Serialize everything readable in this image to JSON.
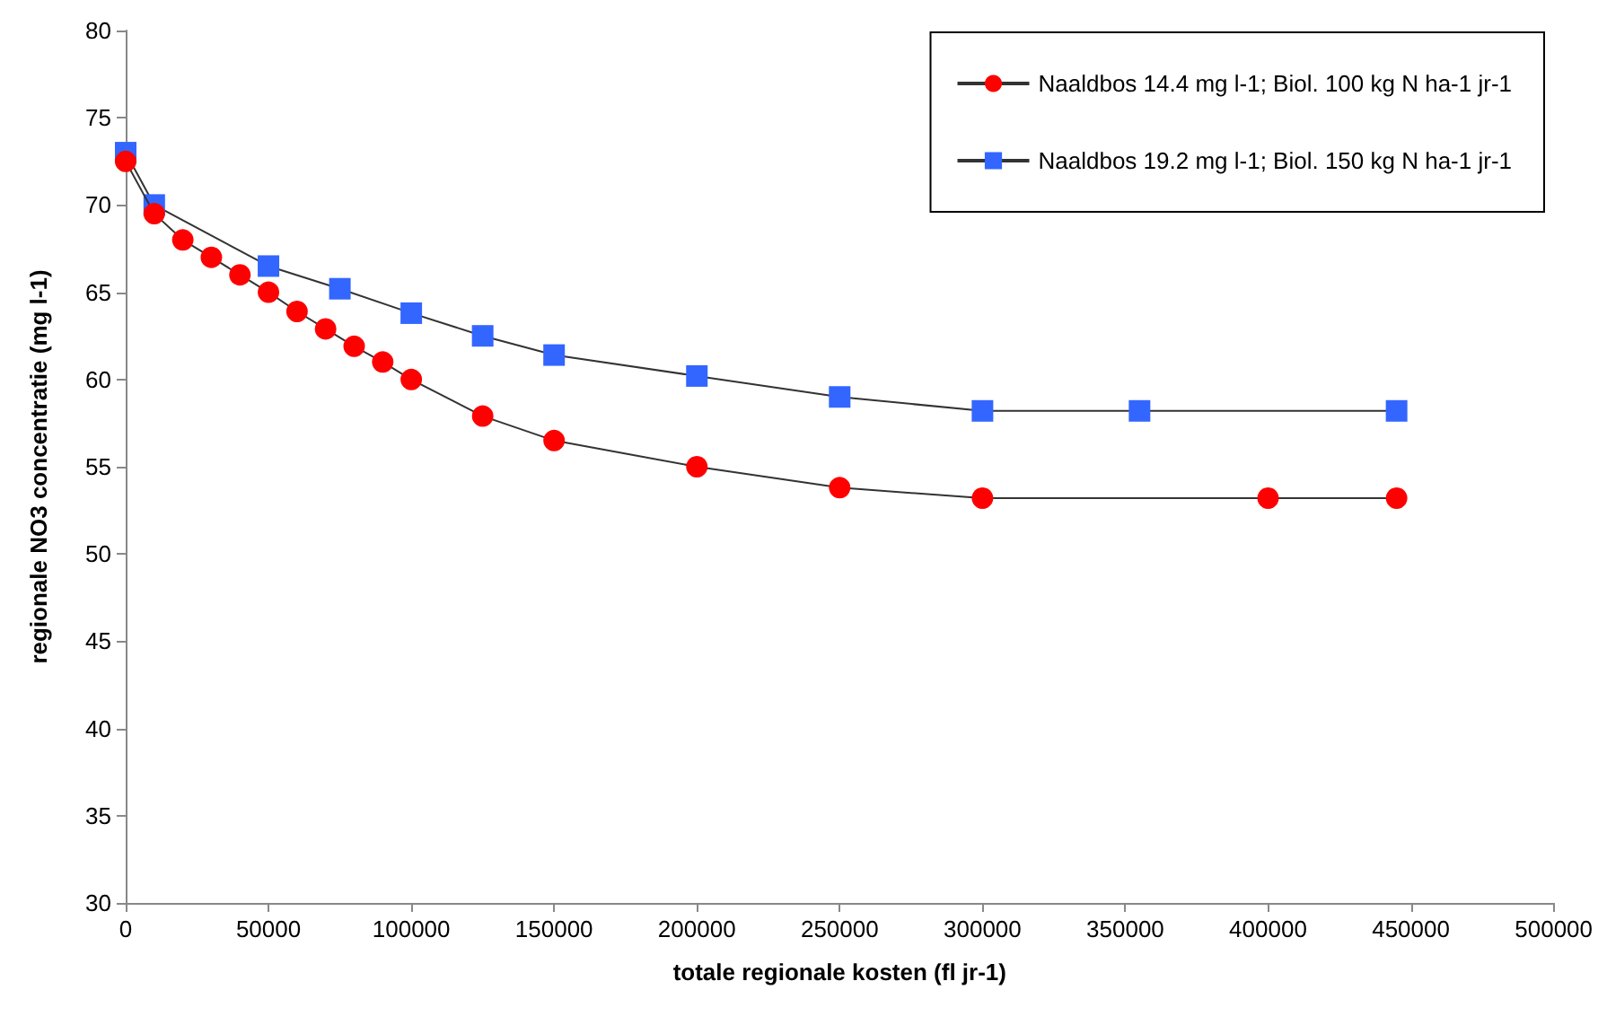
{
  "chart_data": {
    "type": "line",
    "xlabel": "totale regionale kosten (fl jr-1)",
    "ylabel": "regionale NO3 concentratie (mg l-1)",
    "xlim": [
      0,
      500000
    ],
    "xticks": [
      0,
      50000,
      100000,
      150000,
      200000,
      250000,
      300000,
      350000,
      400000,
      450000,
      500000
    ],
    "ylim": [
      30,
      80
    ],
    "yticks": [
      30,
      35,
      40,
      45,
      50,
      55,
      60,
      65,
      70,
      75,
      80
    ],
    "grid": false,
    "legend": "top right",
    "series": [
      {
        "name": "Naaldbos 14.4 mg l-1; Biol. 100 kg N ha-1 jr-1",
        "color": "#ff0000",
        "marker": "circle",
        "x": [
          0,
          10000,
          20000,
          30000,
          40000,
          50000,
          60000,
          70000,
          80000,
          90000,
          100000,
          125000,
          150000,
          200000,
          250000,
          300000,
          400000,
          445000
        ],
        "values": [
          72.5,
          69.5,
          68,
          67,
          66,
          65,
          63.9,
          62.9,
          61.9,
          61,
          60,
          57.9,
          56.5,
          55,
          53.8,
          53.2,
          53.2,
          53.2
        ]
      },
      {
        "name": "Naaldbos 19.2 mg l-1; Biol. 150 kg N ha-1 jr-1",
        "color": "#3366ff",
        "marker": "square",
        "x": [
          0,
          10000,
          50000,
          75000,
          100000,
          125000,
          150000,
          200000,
          250000,
          300000,
          355000,
          445000
        ],
        "values": [
          73,
          70,
          66.5,
          65.2,
          63.8,
          62.5,
          61.4,
          60.2,
          59,
          58.2,
          58.2,
          58.2
        ]
      }
    ]
  }
}
